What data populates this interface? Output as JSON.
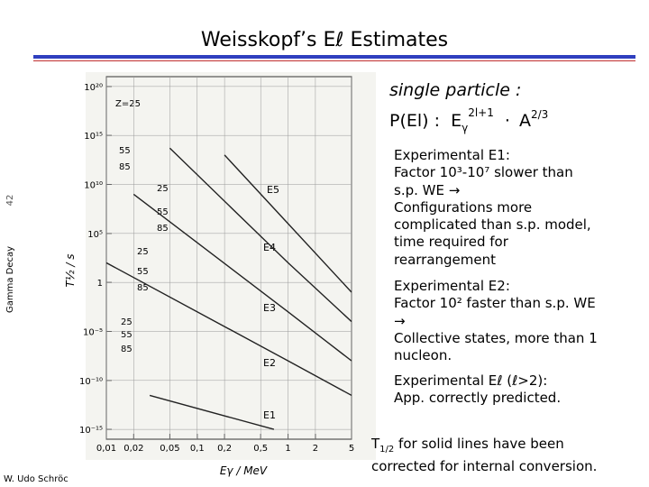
{
  "slide": {
    "title": "Weisskopf’s Eℓ Estimates",
    "side_label": "Gamma Decay",
    "page_number": "42",
    "footer": "W. Udo Schröc"
  },
  "formula": {
    "heading": "single  particle :",
    "lhs": "P(El) :",
    "base": "E",
    "sub": "γ",
    "sup": "2l+1",
    "dot": "·",
    "base2": "A",
    "sup2": "2/3"
  },
  "notes": [
    {
      "lines": [
        "Experimental E1:",
        "Factor 10³-10⁷ slower than",
        "s.p. WE →",
        "Configurations more",
        "complicated than s.p. model,",
        "time required for",
        "rearrangement"
      ]
    },
    {
      "lines": [
        "Experimental E2:",
        "Factor 10² faster than s.p. WE",
        "→",
        "Collective states, more than 1",
        "nucleon."
      ]
    },
    {
      "lines": [
        "Experimental Eℓ (ℓ>2):",
        "App. correctly predicted."
      ]
    }
  ],
  "footnote": {
    "symbol": "T",
    "subscript": "1/2",
    "line1": "for solid lines have been",
    "line2": "corrected for internal conversion."
  },
  "chart_data": {
    "type": "line",
    "xlabel": "Eγ / MeV",
    "ylabel": "T½ / s",
    "xscale": "log",
    "yscale": "log",
    "xlim": [
      0.01,
      5
    ],
    "ylim": [
      1e-16,
      1e+21
    ],
    "xticks": [
      {
        "value": 0.01,
        "label": "0,01"
      },
      {
        "value": 0.02,
        "label": "0,02"
      },
      {
        "value": 0.05,
        "label": "0,05"
      },
      {
        "value": 0.1,
        "label": "0,1"
      },
      {
        "value": 0.2,
        "label": "0,2"
      },
      {
        "value": 0.5,
        "label": "0,5"
      },
      1,
      2,
      5
    ],
    "yticks": [
      {
        "value": 1e+20,
        "label": "10²⁰"
      },
      {
        "value": 1000000000000000.0,
        "label": "10¹⁵"
      },
      {
        "value": 10000000000.0,
        "label": "10¹⁰"
      },
      {
        "value": 100000.0,
        "label": "10⁵"
      },
      1,
      {
        "value": 1e-05,
        "label": "10⁻⁵"
      },
      {
        "value": 1e-10,
        "label": "10⁻¹⁰"
      },
      {
        "value": 1e-15,
        "label": "10⁻¹⁵"
      }
    ],
    "annotations": [
      "Z=25",
      "55",
      "85",
      "25",
      "55",
      "85",
      "25",
      "55",
      "85",
      "25",
      "55",
      "85"
    ],
    "series": [
      {
        "name": "E5",
        "color": "#222222",
        "x": [
          0.2,
          1,
          5
        ],
        "values": [
          10000000000000.0,
          1000000.0,
          0.1
        ]
      },
      {
        "name": "E4",
        "color": "#222222",
        "x": [
          0.05,
          1,
          5
        ],
        "values": [
          50000000000000.0,
          100,
          0.0001
        ]
      },
      {
        "name": "E3",
        "color": "#222222",
        "x": [
          0.02,
          1,
          5
        ],
        "values": [
          1000000000.0,
          0.001,
          1e-08
        ]
      },
      {
        "name": "E2",
        "color": "#222222",
        "x": [
          0.01,
          1,
          5
        ],
        "values": [
          100,
          1e-08,
          3e-12
        ]
      },
      {
        "name": "E1",
        "color": "#222222",
        "x": [
          0.03,
          0.7
        ],
        "values": [
          3e-12,
          1e-15
        ]
      }
    ]
  }
}
